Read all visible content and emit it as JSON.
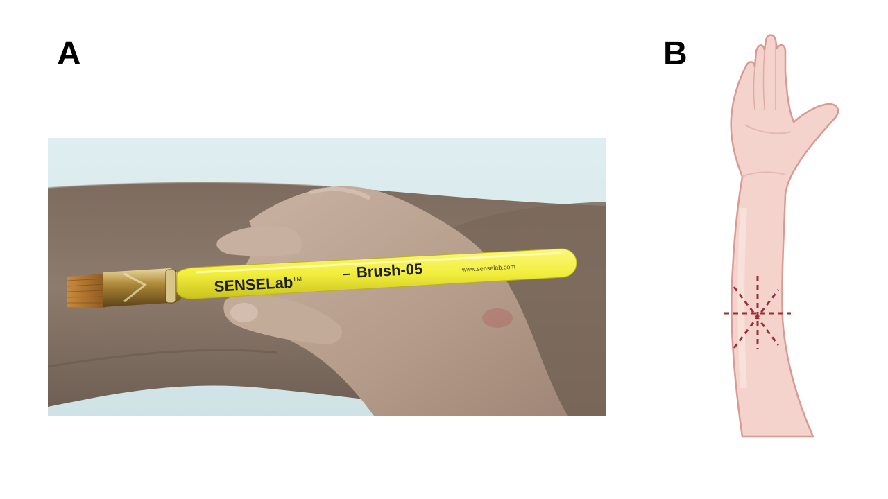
{
  "panels": {
    "a": {
      "label": "A",
      "photo": {
        "brush_brand": "SENSELab",
        "brush_trademark": "TM",
        "brush_separator": "–",
        "brush_model": "Brush-05",
        "brush_url": "www.senselab.com"
      }
    },
    "b": {
      "label": "B",
      "illustration": "forearm-with-stimulation-area"
    }
  },
  "colors": {
    "label_text": "#000000",
    "background": "#ffffff",
    "brush_handle": "#f2ee3c",
    "stimulation_marks": "#9b2f36",
    "arm_skin": "#f3d3cc",
    "arm_outline": "#d99a94"
  }
}
